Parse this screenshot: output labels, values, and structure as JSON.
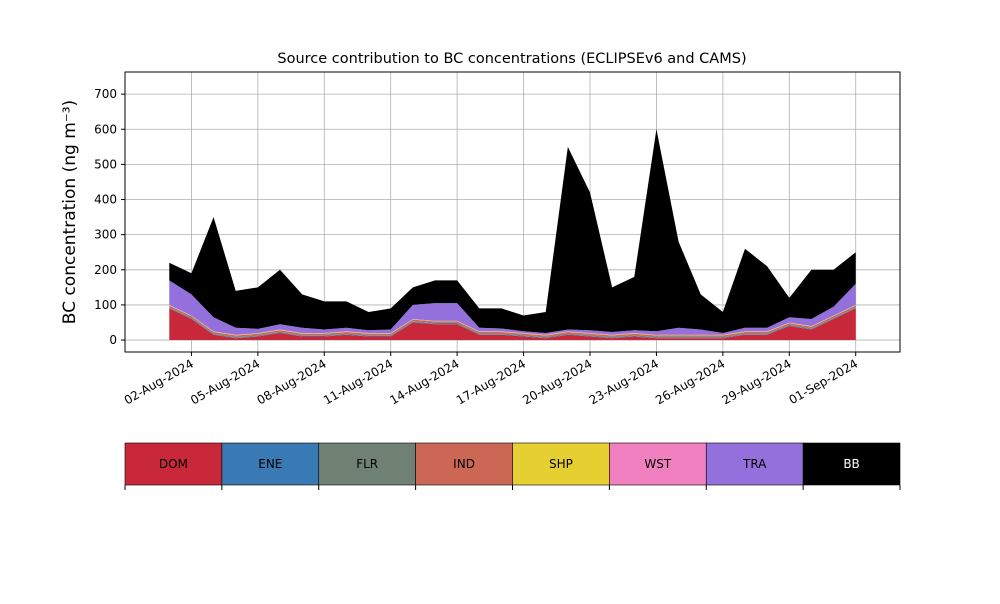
{
  "chart_data": {
    "type": "stacked_area",
    "title": "Source contribution to BC concentrations (ECLIPSEv6 and CAMS)",
    "y_label": "BC concentration (ng m⁻³)",
    "x": [
      "2024-08-01",
      "2024-08-02",
      "2024-08-03",
      "2024-08-04",
      "2024-08-05",
      "2024-08-06",
      "2024-08-07",
      "2024-08-08",
      "2024-08-09",
      "2024-08-10",
      "2024-08-11",
      "2024-08-12",
      "2024-08-13",
      "2024-08-14",
      "2024-08-15",
      "2024-08-16",
      "2024-08-17",
      "2024-08-18",
      "2024-08-19",
      "2024-08-20",
      "2024-08-21",
      "2024-08-22",
      "2024-08-23",
      "2024-08-24",
      "2024-08-25",
      "2024-08-26",
      "2024-08-27",
      "2024-08-28",
      "2024-08-29",
      "2024-08-30",
      "2024-08-31",
      "2024-09-01"
    ],
    "series": [
      {
        "name": "DOM",
        "color": "#c8283a",
        "values": [
          90,
          60,
          15,
          5,
          10,
          20,
          10,
          10,
          15,
          10,
          10,
          50,
          45,
          45,
          15,
          15,
          10,
          5,
          15,
          10,
          5,
          10,
          5,
          5,
          5,
          5,
          15,
          15,
          40,
          30,
          60,
          90
        ]
      },
      {
        "name": "ENE",
        "color": "#3a7ab4",
        "values": [
          2,
          2,
          2,
          2,
          2,
          2,
          2,
          2,
          2,
          2,
          2,
          2,
          2,
          2,
          2,
          2,
          2,
          2,
          2,
          2,
          2,
          2,
          2,
          2,
          2,
          2,
          2,
          2,
          2,
          2,
          2,
          2
        ]
      },
      {
        "name": "FLR",
        "color": "#6f8172",
        "values": [
          2,
          2,
          2,
          2,
          2,
          2,
          2,
          2,
          2,
          2,
          2,
          2,
          2,
          2,
          2,
          2,
          2,
          2,
          2,
          2,
          2,
          2,
          2,
          2,
          2,
          2,
          2,
          2,
          2,
          2,
          2,
          2
        ]
      },
      {
        "name": "IND",
        "color": "#cc6655",
        "values": [
          4,
          4,
          4,
          4,
          4,
          4,
          4,
          4,
          4,
          4,
          4,
          4,
          4,
          4,
          4,
          4,
          4,
          4,
          4,
          4,
          4,
          4,
          4,
          4,
          4,
          4,
          4,
          4,
          4,
          4,
          4,
          4
        ]
      },
      {
        "name": "SHP",
        "color": "#e6cf30",
        "values": [
          1,
          1,
          1,
          1,
          1,
          1,
          1,
          1,
          1,
          1,
          1,
          1,
          1,
          1,
          1,
          1,
          1,
          1,
          1,
          1,
          1,
          1,
          1,
          1,
          1,
          1,
          1,
          1,
          1,
          1,
          1,
          1
        ]
      },
      {
        "name": "WST",
        "color": "#f080c0",
        "values": [
          1,
          1,
          1,
          1,
          1,
          1,
          1,
          1,
          1,
          1,
          1,
          1,
          1,
          1,
          1,
          1,
          1,
          1,
          1,
          1,
          1,
          1,
          1,
          1,
          1,
          1,
          1,
          1,
          1,
          1,
          1,
          1
        ]
      },
      {
        "name": "TRA",
        "color": "#9370db",
        "values": [
          70,
          60,
          40,
          20,
          12,
          15,
          15,
          10,
          10,
          8,
          10,
          40,
          50,
          50,
          10,
          8,
          5,
          5,
          5,
          8,
          8,
          8,
          10,
          20,
          15,
          5,
          10,
          10,
          15,
          20,
          25,
          60
        ]
      },
      {
        "name": "BB",
        "color": "#000000",
        "values": [
          50,
          60,
          285,
          105,
          118,
          155,
          95,
          80,
          75,
          52,
          60,
          50,
          65,
          65,
          55,
          57,
          45,
          60,
          520,
          392,
          127,
          152,
          575,
          245,
          100,
          60,
          225,
          175,
          55,
          140,
          105,
          90
        ]
      }
    ],
    "xlim": [
      "2024-07-30",
      "2024-09-03"
    ],
    "xticks": [
      {
        "value": "2024-08-02",
        "label": "02-Aug-2024"
      },
      {
        "value": "2024-08-05",
        "label": "05-Aug-2024"
      },
      {
        "value": "2024-08-08",
        "label": "08-Aug-2024"
      },
      {
        "value": "2024-08-11",
        "label": "11-Aug-2024"
      },
      {
        "value": "2024-08-14",
        "label": "14-Aug-2024"
      },
      {
        "value": "2024-08-17",
        "label": "17-Aug-2024"
      },
      {
        "value": "2024-08-20",
        "label": "20-Aug-2024"
      },
      {
        "value": "2024-08-23",
        "label": "23-Aug-2024"
      },
      {
        "value": "2024-08-26",
        "label": "26-Aug-2024"
      },
      {
        "value": "2024-08-29",
        "label": "29-Aug-2024"
      },
      {
        "value": "2024-09-01",
        "label": "01-Sep-2024"
      }
    ],
    "ylim": [
      -34,
      763
    ],
    "yticks": [
      0,
      100,
      200,
      300,
      400,
      500,
      600,
      700
    ],
    "grid": true
  }
}
